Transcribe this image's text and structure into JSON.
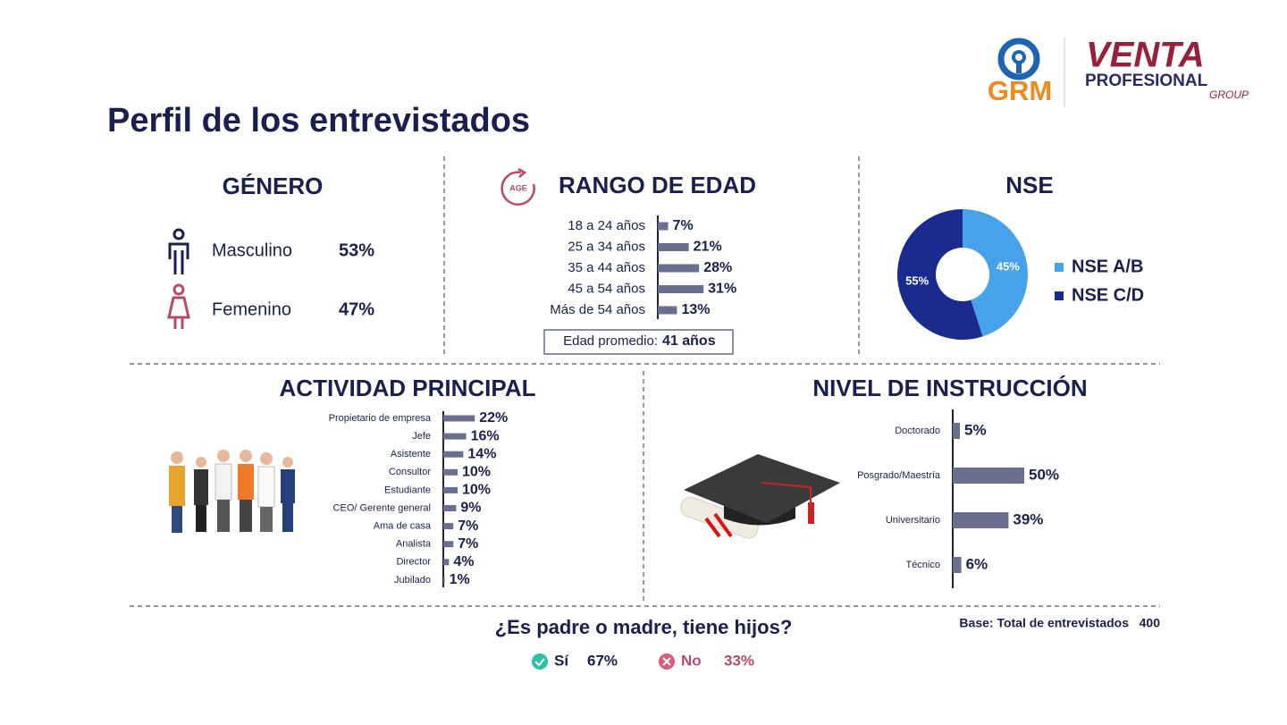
{
  "header": {
    "title": "Perfil de los entrevistados",
    "logos": {
      "left": "GRM",
      "right_top": "VENTA",
      "right_mid": "PROFESIONAL",
      "right_bottom": "GROUP"
    }
  },
  "gender": {
    "title": "GÉNERO",
    "items": [
      {
        "label": "Masculino",
        "value": "53%"
      },
      {
        "label": "Femenino",
        "value": "47%"
      }
    ]
  },
  "chart_data": [
    {
      "type": "bar",
      "title": "RANGO DE EDAD",
      "icon": "AGE",
      "categories": [
        "18 a 24 años",
        "25 a 34 años",
        "35 a 44 años",
        "45 a 54 años",
        "Más de 54 años"
      ],
      "values": [
        7,
        21,
        28,
        31,
        13
      ],
      "value_labels": [
        "7%",
        "21%",
        "28%",
        "31%",
        "13%"
      ],
      "color": "#6b6f8f",
      "note": {
        "label": "Edad promedio:",
        "value": "41 años"
      }
    },
    {
      "type": "pie",
      "title": "NSE",
      "categories": [
        "NSE A/B",
        "NSE C/D"
      ],
      "values": [
        45,
        55
      ],
      "value_labels": [
        "45%",
        "55%"
      ],
      "colors": [
        "#46a3ea",
        "#1a2a8e"
      ],
      "donut": true
    },
    {
      "type": "bar",
      "title": "ACTIVIDAD PRINCIPAL",
      "categories": [
        "Propietario de empresa",
        "Jefe",
        "Asistente",
        "Consultor",
        "Estudiante",
        "CEO/ Gerente general",
        "Ama de casa",
        "Analista",
        "Director",
        "Jubilado"
      ],
      "values": [
        22,
        16,
        14,
        10,
        10,
        9,
        7,
        7,
        4,
        1
      ],
      "value_labels": [
        "22%",
        "16%",
        "14%",
        "10%",
        "10%",
        "9%",
        "7%",
        "7%",
        "4%",
        "1%"
      ],
      "color": "#6b6f8f"
    },
    {
      "type": "bar",
      "title": "NIVEL DE INSTRUCCIÓN",
      "categories": [
        "Doctorado",
        "Posgrado/Maestría",
        "Universitario",
        "Técnico"
      ],
      "values": [
        5,
        50,
        39,
        6
      ],
      "value_labels": [
        "5%",
        "50%",
        "39%",
        "6%"
      ],
      "color": "#6b6f8f"
    }
  ],
  "children": {
    "title": "¿Es padre o madre, tiene hijos?",
    "items": [
      {
        "label": "Sí",
        "value": "67%"
      },
      {
        "label": "No",
        "value": "33%"
      }
    ]
  },
  "footer": {
    "base_label": "Base: Total de entrevistados",
    "base_value": 400
  }
}
